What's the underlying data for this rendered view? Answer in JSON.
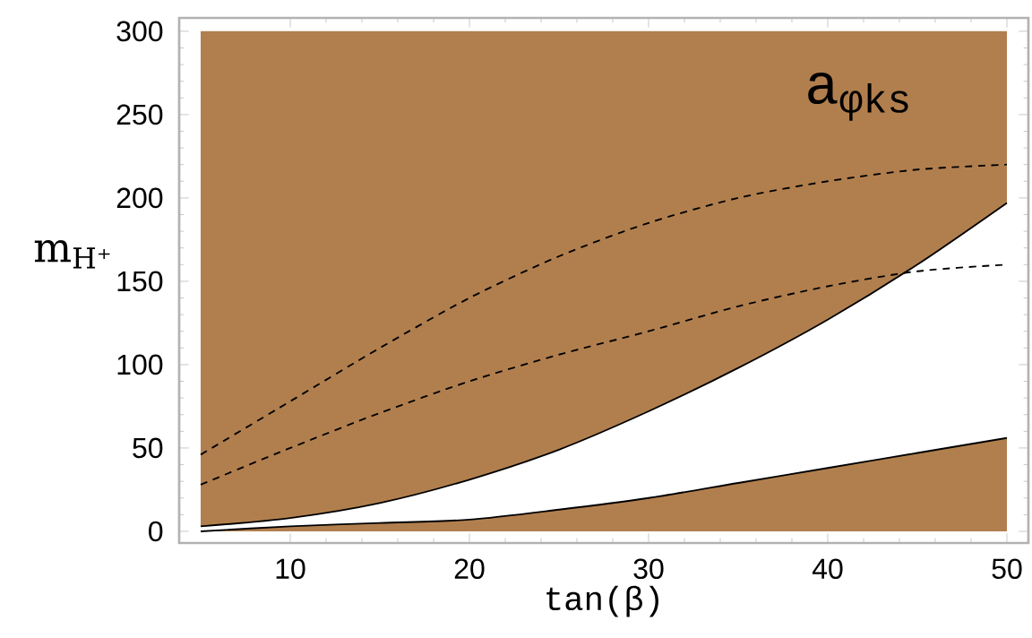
{
  "chart_data": {
    "type": "area",
    "stacked": true,
    "xlabel": "tan(β)",
    "ylabel": "m$_{H⁺}$",
    "annotations": [
      "a$_{φks}$"
    ],
    "xlim": [
      3.8,
      51.2
    ],
    "ylim": [
      -7,
      308
    ],
    "xticks": [
      10,
      20,
      30,
      40,
      50
    ],
    "yticks": [
      0,
      50,
      100,
      150,
      200,
      250,
      300
    ],
    "x": [
      5,
      10,
      15,
      20,
      25,
      30,
      35,
      40,
      45,
      50
    ],
    "series": [
      {
        "color": "#b17f4e",
        "line_style": "solid",
        "values": [
          0,
          3,
          5,
          7,
          13,
          20,
          29,
          38,
          47,
          56
        ]
      },
      {
        "color": "#ffffff",
        "line_style": "solid",
        "values": [
          3,
          5,
          12,
          24,
          36,
          52,
          69,
          89,
          113,
          141
        ]
      },
      {
        "color": "#b17f4e",
        "values": [
          297,
          292,
          283,
          269,
          251,
          228,
          202,
          173,
          140,
          103
        ]
      },
      {
        "type": "line",
        "color": "#000000",
        "line_style": "dashed",
        "values": [
          46,
          78,
          110,
          140,
          165,
          185,
          200,
          210,
          217,
          220
        ]
      },
      {
        "type": "line",
        "color": "#000000",
        "line_style": "dashed",
        "values": [
          28,
          50,
          71,
          90,
          106,
          120,
          135,
          147,
          156,
          160
        ]
      }
    ]
  }
}
